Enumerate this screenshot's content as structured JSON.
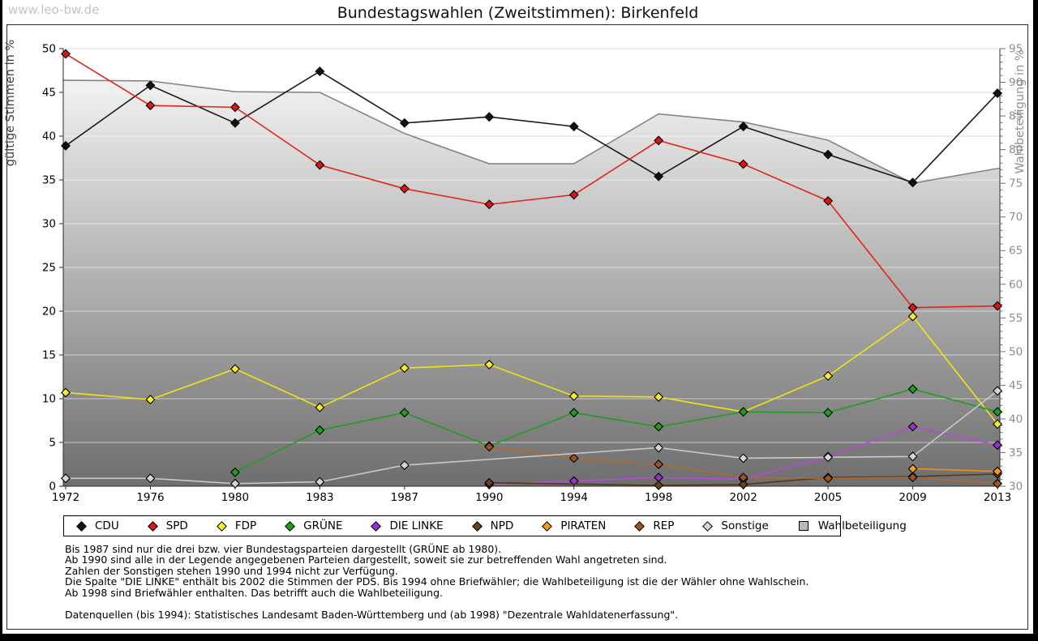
{
  "header": {
    "watermark": "www.leo-bw.de",
    "title": "Bundestagswahlen (Zweitstimmen): Birkenfeld"
  },
  "chart_data": {
    "type": "line",
    "title": "Bundestagswahlen (Zweitstimmen): Birkenfeld",
    "x_categories": [
      "1972",
      "1976",
      "1980",
      "1983",
      "1987",
      "1990",
      "1994",
      "1998",
      "2002",
      "2005",
      "2009",
      "2013"
    ],
    "left_axis": {
      "label": "gültige Stimmen in %",
      "min": 0,
      "max": 50,
      "tick_step": 5
    },
    "right_axis": {
      "label": "Wahlbeteiligung in %",
      "min": 30,
      "max": 95,
      "tick_step": 5
    },
    "grid": "horizontal",
    "legend_position": "bottom",
    "area_series": {
      "name": "Wahlbeteiligung",
      "axis": "right",
      "fill_top": "#fcfcfc",
      "fill_bottom": "#6e6e6e",
      "edge_color": "#848484",
      "values": [
        90.3,
        90.2,
        88.6,
        88.5,
        82.4,
        77.9,
        77.9,
        85.3,
        84.1,
        81.4,
        75.0,
        77.2
      ]
    },
    "series": [
      {
        "key": "cdu",
        "name": "CDU",
        "color": "#1a1a1a",
        "marker": "#111111",
        "axis": "left",
        "values": [
          38.9,
          45.8,
          41.5,
          47.4,
          41.5,
          42.2,
          41.1,
          35.4,
          41.1,
          37.9,
          34.7,
          44.9
        ]
      },
      {
        "key": "spd",
        "name": "SPD",
        "color": "#e02519",
        "marker": "#dd1414",
        "axis": "left",
        "values": [
          49.4,
          43.5,
          43.3,
          36.7,
          34.0,
          32.2,
          33.3,
          39.5,
          36.8,
          32.6,
          20.4,
          20.6
        ]
      },
      {
        "key": "fdp",
        "name": "FDP",
        "color": "#f2e410",
        "marker": "#f7ef2e",
        "axis": "left",
        "values": [
          10.7,
          9.9,
          13.4,
          9.0,
          13.5,
          13.9,
          10.3,
          10.2,
          8.5,
          12.6,
          19.4,
          7.1
        ]
      },
      {
        "key": "gruene",
        "name": "GRÜNE",
        "color": "#1e9e1e",
        "marker": "#1e9e1e",
        "axis": "left",
        "values": [
          null,
          null,
          1.6,
          6.4,
          8.4,
          4.6,
          8.4,
          6.8,
          8.5,
          8.4,
          11.1,
          8.5
        ]
      },
      {
        "key": "die-linke",
        "name": "DIE LINKE",
        "color": "#b44bd9",
        "marker": "#9b30cc",
        "axis": "left",
        "values": [
          null,
          null,
          null,
          null,
          null,
          0.2,
          0.6,
          1.0,
          0.8,
          3.4,
          6.8,
          4.7
        ]
      },
      {
        "key": "npd",
        "name": "NPD",
        "color": "#53381d",
        "marker": "#64451f",
        "axis": "left",
        "values": [
          null,
          null,
          null,
          null,
          null,
          0.4,
          null,
          0.1,
          0.2,
          1.0,
          1.1,
          1.4
        ]
      },
      {
        "key": "piraten",
        "name": "PIRATEN",
        "color": "#ef9018",
        "marker": "#f89c1b",
        "axis": "left",
        "values": [
          null,
          null,
          null,
          null,
          null,
          null,
          null,
          null,
          null,
          null,
          2.0,
          1.7
        ]
      },
      {
        "key": "rep",
        "name": "REP",
        "color": "#b06a30",
        "marker": "#9c5422",
        "axis": "left",
        "values": [
          null,
          null,
          null,
          null,
          null,
          4.5,
          3.2,
          2.5,
          1.0,
          0.9,
          1.0,
          0.3
        ]
      },
      {
        "key": "sonstige",
        "name": "Sonstige",
        "color": "#c9c9c9",
        "marker": "#d6d6d6",
        "axis": "left",
        "values": [
          0.9,
          0.9,
          0.3,
          0.5,
          2.4,
          null,
          null,
          4.4,
          3.2,
          3.3,
          3.4,
          10.9
        ]
      }
    ]
  },
  "legend": {
    "items": [
      {
        "key": "cdu",
        "label": "CDU",
        "color": "#111111",
        "shape": "diamond"
      },
      {
        "key": "spd",
        "label": "SPD",
        "color": "#dd1414",
        "shape": "diamond"
      },
      {
        "key": "fdp",
        "label": "FDP",
        "color": "#f7ef2e",
        "shape": "diamond"
      },
      {
        "key": "gruene",
        "label": "GRÜNE",
        "color": "#1e9e1e",
        "shape": "diamond"
      },
      {
        "key": "die-linke",
        "label": "DIE LINKE",
        "color": "#9b30cc",
        "shape": "diamond"
      },
      {
        "key": "npd",
        "label": "NPD",
        "color": "#64451f",
        "shape": "diamond"
      },
      {
        "key": "piraten",
        "label": "PIRATEN",
        "color": "#f89c1b",
        "shape": "diamond"
      },
      {
        "key": "rep",
        "label": "REP",
        "color": "#9c5422",
        "shape": "diamond"
      },
      {
        "key": "sonstige",
        "label": "Sonstige",
        "color": "#d6d6d6",
        "shape": "diamond"
      },
      {
        "key": "wahlbeteiligung",
        "label": "Wahlbeteiligung",
        "color": "#b8b8b8",
        "shape": "square"
      }
    ]
  },
  "notes": {
    "lines": [
      "Bis 1987 sind nur die drei bzw. vier Bundestagsparteien dargestellt (GRÜNE ab 1980).",
      "Ab 1990 sind alle in der Legende angegebenen Parteien dargestellt, soweit sie zur betreffenden Wahl angetreten sind.",
      "Zahlen der Sonstigen stehen 1990 und 1994 nicht zur Verfügung.",
      "Die Spalte \"DIE LINKE\" enthält bis 2002 die Stimmen der PDS. Bis 1994 ohne Briefwähler; die Wahlbeteiligung ist die der Wähler ohne Wahlschein.",
      "Ab 1998 sind Briefwähler enthalten. Das betrifft auch die Wahlbeteiligung."
    ],
    "source": "Datenquellen (bis 1994): Statistisches Landesamt Baden-Württemberg und (ab 1998) \"Dezentrale Wahldatenerfassung\"."
  }
}
